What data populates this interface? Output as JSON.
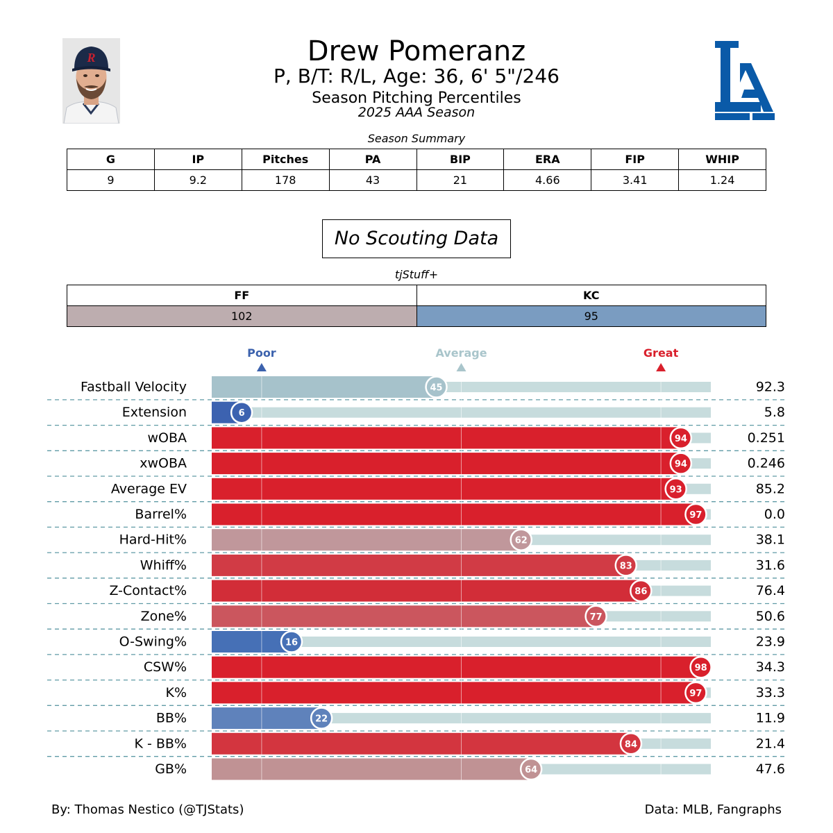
{
  "header": {
    "name": "Drew Pomeranz",
    "bio": "P, B/T: R/L, Age: 36, 6' 5\"/246",
    "subtitle": "Season Pitching Percentiles",
    "season": "2025 AAA Season",
    "logo_text": "LA",
    "colors": {
      "logo": "#0a5aa8",
      "cap": "#1b2a48",
      "cap_logo": "#c8202f"
    }
  },
  "summary": {
    "caption": "Season Summary",
    "columns": [
      "G",
      "IP",
      "Pitches",
      "PA",
      "BIP",
      "ERA",
      "FIP",
      "WHIP"
    ],
    "values": [
      "9",
      "9.2",
      "178",
      "43",
      "21",
      "4.66",
      "3.41",
      "1.24"
    ]
  },
  "scouting": {
    "text": "No Scouting Data"
  },
  "tjstuff": {
    "caption": "tjStuff+",
    "columns": [
      "FF",
      "KC"
    ],
    "values": [
      "102",
      "95"
    ],
    "colors": [
      "#bdadaf",
      "#7a9cc1"
    ]
  },
  "chart_data": {
    "type": "bar",
    "orientation": "horizontal",
    "xlim": [
      0,
      100
    ],
    "reference_lines": [
      10,
      50,
      90
    ],
    "scale_labels": [
      {
        "label": "Poor",
        "at": 10,
        "color": "#3c62ad"
      },
      {
        "label": "Average",
        "at": 50,
        "color": "#a9c5cb"
      },
      {
        "label": "Great",
        "at": 90,
        "color": "#d9202c"
      }
    ],
    "categories": [
      "Fastball Velocity",
      "Extension",
      "wOBA",
      "xwOBA",
      "Average EV",
      "Barrel%",
      "Hard-Hit%",
      "Whiff%",
      "Z-Contact%",
      "Zone%",
      "O-Swing%",
      "CSW%",
      "K%",
      "BB%",
      "K - BB%",
      "GB%"
    ],
    "percentiles": [
      45,
      6,
      94,
      94,
      93,
      97,
      62,
      83,
      86,
      77,
      16,
      98,
      97,
      22,
      84,
      64
    ],
    "stat_values": [
      "92.3",
      "5.8",
      "0.251",
      "0.246",
      "85.2",
      "0.0",
      "38.1",
      "31.6",
      "76.4",
      "50.6",
      "23.9",
      "34.3",
      "33.3",
      "11.9",
      "21.4",
      "47.6"
    ],
    "colors": [
      "#a6c2cb",
      "#3c62b0",
      "#d9202c",
      "#d9202c",
      "#d9202c",
      "#d9202c",
      "#c0979b",
      "#d13b45",
      "#d22d38",
      "#cb565e",
      "#4670b6",
      "#d9202c",
      "#d9202c",
      "#5f82bb",
      "#d3353f",
      "#c09294"
    ],
    "track_color": "#c7dcdd"
  },
  "footer": {
    "left": "By: Thomas Nestico (@TJStats)",
    "right": "Data: MLB, Fangraphs"
  }
}
